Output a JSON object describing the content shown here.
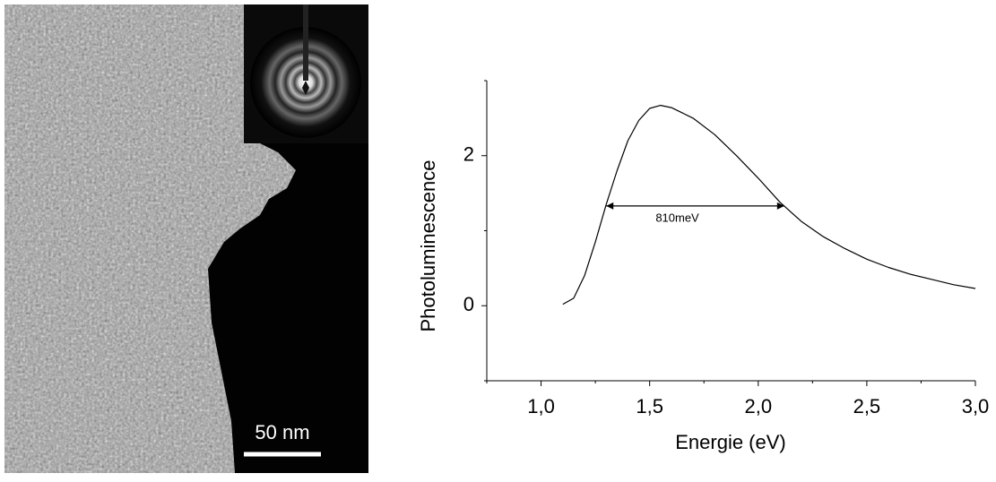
{
  "image": {
    "scale_bar": "50 nm"
  },
  "chart_data": {
    "type": "line",
    "xlabel": "Energie (eV)",
    "ylabel": "Photoluminescence",
    "x": [
      1.1,
      1.15,
      1.2,
      1.25,
      1.3,
      1.35,
      1.4,
      1.45,
      1.5,
      1.55,
      1.6,
      1.7,
      1.8,
      1.9,
      2.0,
      2.1,
      2.2,
      2.3,
      2.4,
      2.5,
      2.6,
      2.7,
      2.8,
      2.9,
      3.0
    ],
    "values": [
      0.02,
      0.1,
      0.4,
      0.85,
      1.35,
      1.8,
      2.2,
      2.47,
      2.63,
      2.67,
      2.64,
      2.5,
      2.28,
      2.0,
      1.7,
      1.38,
      1.12,
      0.92,
      0.76,
      0.62,
      0.51,
      0.42,
      0.35,
      0.28,
      0.23
    ],
    "color": "#000000",
    "xlim": [
      0.75,
      3.0
    ],
    "ylim": [
      -1,
      3
    ],
    "xticks": [
      {
        "value": 1.0,
        "label": "1,0"
      },
      {
        "value": 1.5,
        "label": "1,5"
      },
      {
        "value": 2.0,
        "label": "2,0"
      },
      {
        "value": 2.5,
        "label": "2,5"
      },
      {
        "value": 3.0,
        "label": "3,0"
      }
    ],
    "xminor_ticks": [
      0.75,
      1.25,
      1.75,
      2.25,
      2.75
    ],
    "yticks": [
      0,
      2
    ],
    "yminor_ticks": [
      -1,
      1,
      3
    ],
    "annotation": {
      "text": "810meV",
      "x": [
        1.3,
        2.12
      ],
      "y": 1.33
    }
  }
}
